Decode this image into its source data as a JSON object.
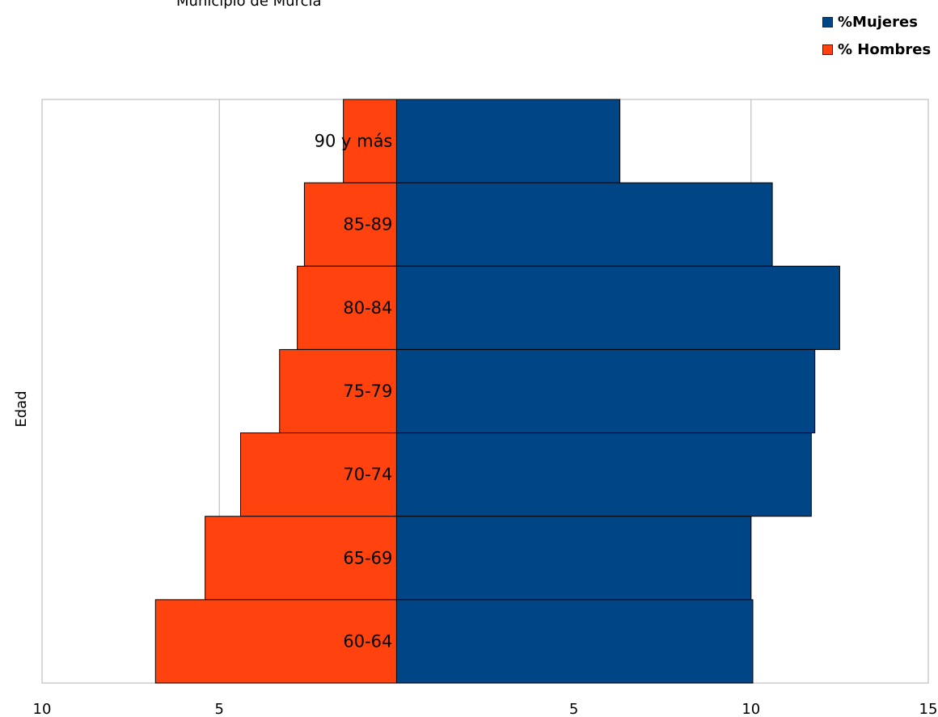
{
  "chart_data": {
    "type": "bar",
    "orientation": "horizontal",
    "subtitle": "Municipio de Murcia",
    "ylabel": "Edad",
    "categories": [
      "90 y más",
      "85-89",
      "80-84",
      "75-79",
      "70-74",
      "65-69",
      "60-64"
    ],
    "series": [
      {
        "name": "%Mujeres",
        "color": "#004586",
        "values": [
          6.3,
          10.6,
          12.5,
          11.8,
          11.7,
          10.0,
          10.05
        ]
      },
      {
        "name": "% Hombres",
        "color": "#ff420e",
        "values": [
          1.5,
          2.6,
          2.8,
          3.3,
          4.4,
          5.4,
          6.8
        ]
      }
    ],
    "x_ticks": [
      "10",
      "5",
      "",
      "5",
      "10",
      "15"
    ],
    "xlim": [
      -10,
      15
    ],
    "grid": true,
    "legend_position": "top-right"
  }
}
